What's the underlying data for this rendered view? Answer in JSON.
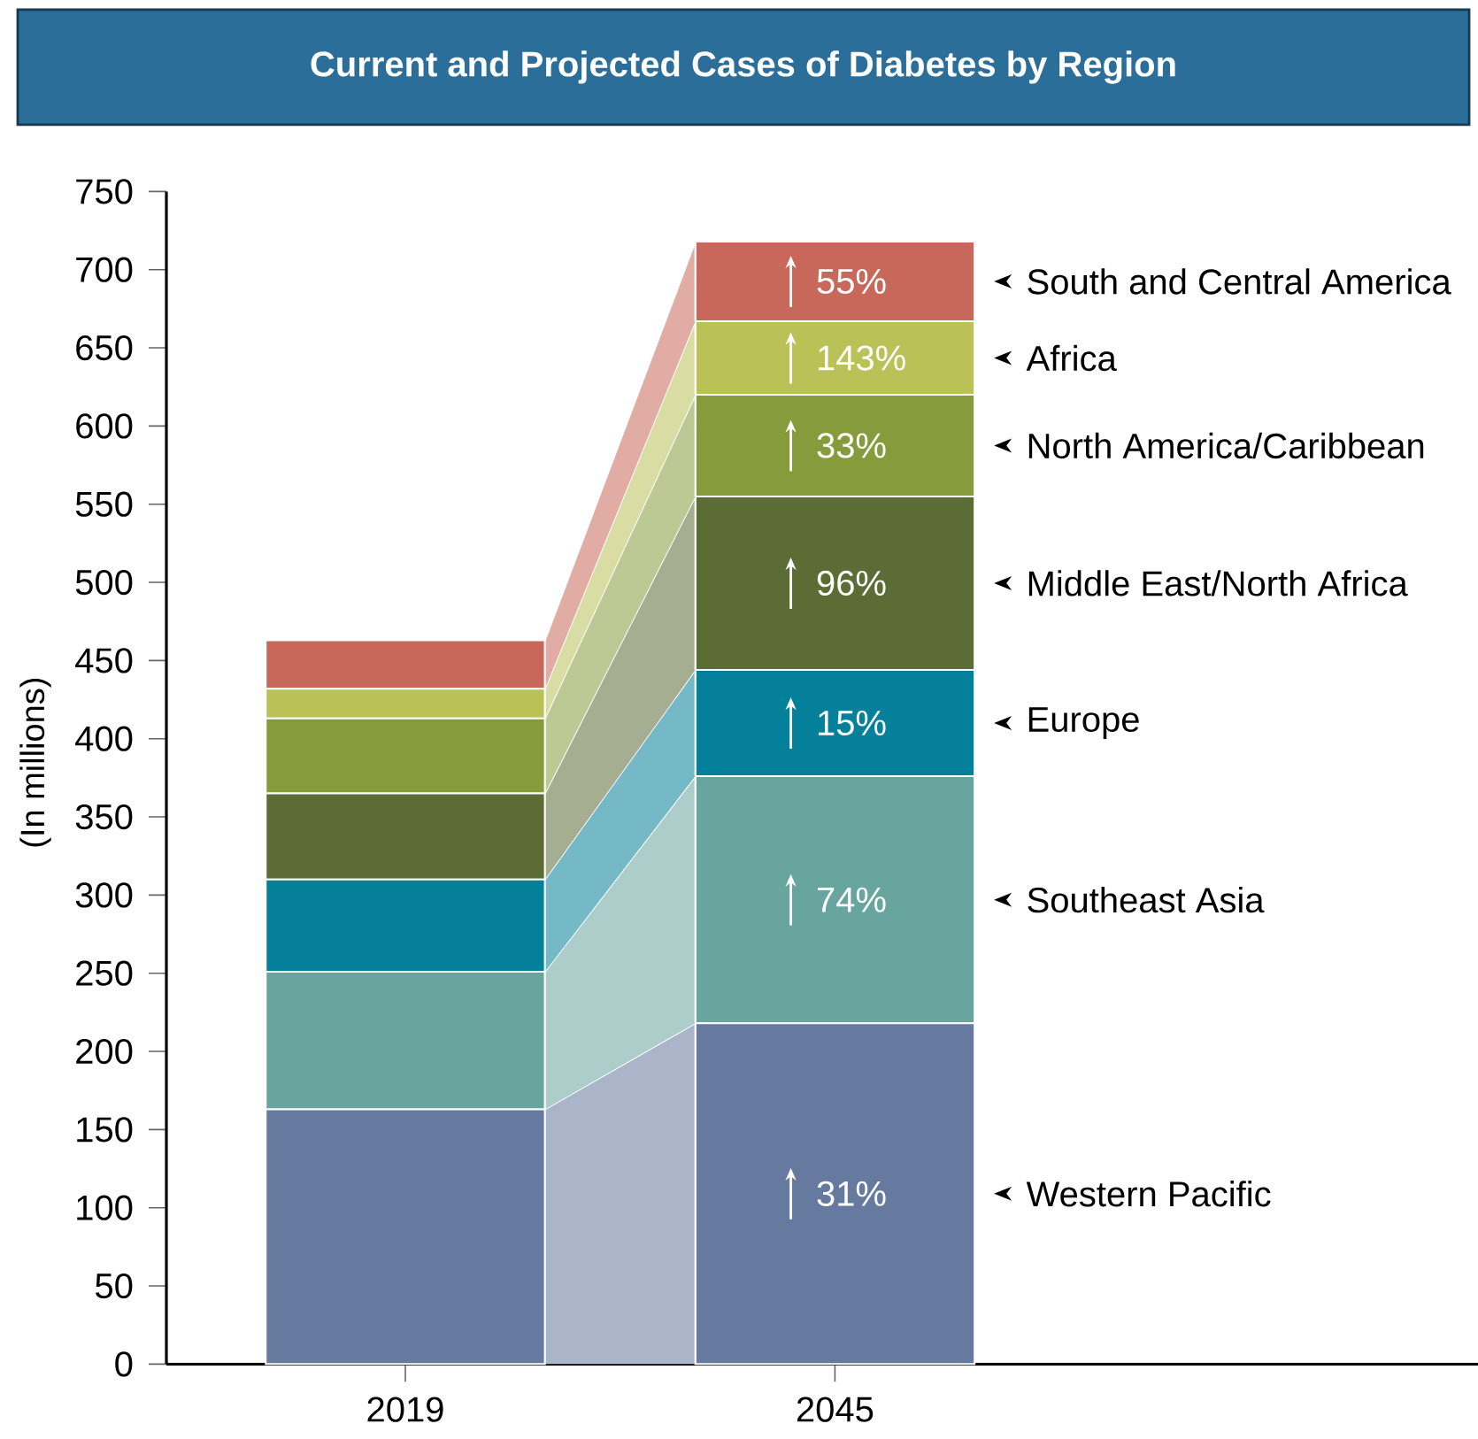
{
  "chart_data": {
    "type": "bar",
    "title": "Current and Projected Cases of Diabetes by Region",
    "ylabel": "(In millions)",
    "categories": [
      "2019",
      "2045"
    ],
    "stacked": true,
    "ylim": [
      0,
      750
    ],
    "yticks": [
      0,
      50,
      100,
      150,
      200,
      250,
      300,
      350,
      400,
      450,
      500,
      550,
      600,
      650,
      700,
      750
    ],
    "series": [
      {
        "name": "Western Pacific",
        "color": "#66799e",
        "values": [
          163,
          218
        ]
      },
      {
        "name": "Southeast Asia",
        "color": "#68a59f",
        "values": [
          88,
          158
        ]
      },
      {
        "name": "Europe",
        "color": "#04809a",
        "values": [
          59,
          68
        ]
      },
      {
        "name": "Middle East/North Africa",
        "color": "#5b6c35",
        "values": [
          55,
          111
        ]
      },
      {
        "name": "North America/Caribbean",
        "color": "#869c3c",
        "values": [
          48,
          65
        ]
      },
      {
        "name": "Africa",
        "color": "#b9c157",
        "values": [
          19,
          47
        ]
      },
      {
        "name": "South and Central America",
        "color": "#c7685a",
        "values": [
          31,
          51
        ]
      }
    ],
    "annotations": [
      "31%",
      "74%",
      "15%",
      "96%",
      "33%",
      "143%",
      "55%"
    ]
  }
}
